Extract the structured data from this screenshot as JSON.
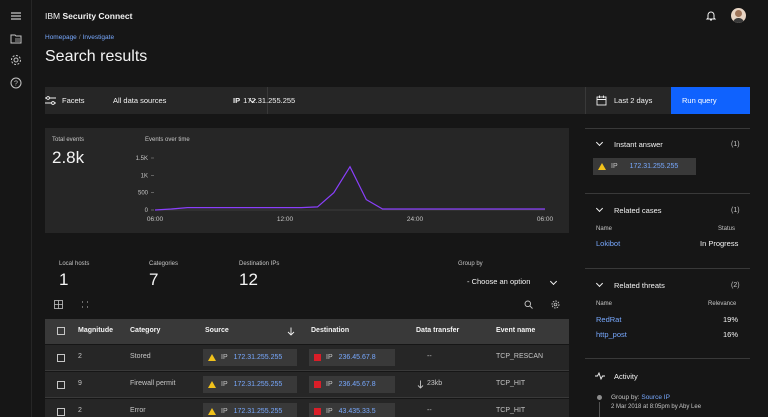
{
  "app": {
    "brand_prefix": "IBM",
    "brand_name": "Security",
    "brand_suffix": "Connect"
  },
  "breadcrumb": {
    "home": "Homepage",
    "current": "Investigate",
    "sep": "/"
  },
  "page_title": "Search results",
  "search": {
    "facets_label": "Facets",
    "sources_value": "All data sources",
    "query_type": "IP",
    "query_value": "172.31.255.255",
    "date_range": "Last 2 days",
    "run_label": "Run query"
  },
  "summary": {
    "total_label": "Total events",
    "total_value": "2.8k",
    "chart_label": "Events over time"
  },
  "chart_data": {
    "type": "line",
    "title": "Events over time",
    "x": [
      "06:00",
      "07:00",
      "08:00",
      "09:00",
      "10:00",
      "11:00",
      "12:00",
      "13:00",
      "14:00",
      "15:00",
      "16:00",
      "17:00",
      "18:00",
      "19:00",
      "20:00",
      "21:00",
      "22:00",
      "23:00",
      "00:00",
      "01:00",
      "02:00",
      "03:00",
      "04:00",
      "05:00",
      "06:00"
    ],
    "x_ticks": [
      "06:00",
      "12:00",
      "24:00",
      "06:00"
    ],
    "values": [
      0,
      30,
      70,
      70,
      70,
      70,
      70,
      70,
      70,
      70,
      90,
      500,
      1250,
      300,
      30,
      30,
      30,
      30,
      30,
      30,
      30,
      30,
      30,
      30,
      30
    ],
    "y_ticks": [
      "1.5K",
      "1K",
      "500",
      "0"
    ],
    "ylim": [
      0,
      1500
    ],
    "color": "#8a3ffc"
  },
  "stats": [
    {
      "label": "Local hosts",
      "value": "1"
    },
    {
      "label": "Categories",
      "value": "7"
    },
    {
      "label": "Destination IPs",
      "value": "12"
    }
  ],
  "group_by": {
    "label": "Group by",
    "value": "- Choose an option"
  },
  "table": {
    "headers": {
      "magnitude": "Magnitude",
      "category": "Category",
      "source": "Source",
      "destination": "Destination",
      "transfer": "Data transfer",
      "event": "Event name"
    },
    "rows": [
      {
        "magnitude": "2",
        "category": "Stored",
        "src_type": "IP",
        "src": "172.31.255.255",
        "dst_type": "IP",
        "dst": "236.45.67.8",
        "transfer": "--",
        "event": "TCP_RESCAN"
      },
      {
        "magnitude": "9",
        "category": "Firewall permit",
        "src_type": "IP",
        "src": "172.31.255.255",
        "dst_type": "IP",
        "dst": "236.45.67.8",
        "transfer": "23kb",
        "event": "TCP_HIT"
      },
      {
        "magnitude": "2",
        "category": "Error",
        "src_type": "IP",
        "src": "172.31.255.255",
        "dst_type": "IP",
        "dst": "43.435.33.5",
        "transfer": "--",
        "event": "TCP_HIT"
      }
    ]
  },
  "instant_answer": {
    "title": "Instant answer",
    "count": "(1)",
    "type": "IP",
    "value": "172.31.255.255"
  },
  "related_cases": {
    "title": "Related cases",
    "count": "(1)",
    "col_name": "Name",
    "col_status": "Status",
    "items": [
      {
        "name": "Lokibot",
        "status": "In Progress"
      }
    ]
  },
  "related_threats": {
    "title": "Related threats",
    "count": "(2)",
    "col_name": "Name",
    "col_relevance": "Relevance",
    "items": [
      {
        "name": "RedRat",
        "relevance": "19%"
      },
      {
        "name": "http_post",
        "relevance": "16%"
      }
    ]
  },
  "activity": {
    "title": "Activity",
    "line1_prefix": "Group by:",
    "line1_value": "Source IP",
    "line2": "2 Mar 2018 at 8:05pm by Aby Lee"
  },
  "colors": {
    "accent": "#0f62fe",
    "link": "#78a9ff",
    "warning": "#f1c21b",
    "danger": "#da1e28",
    "line": "#8a3ffc"
  }
}
